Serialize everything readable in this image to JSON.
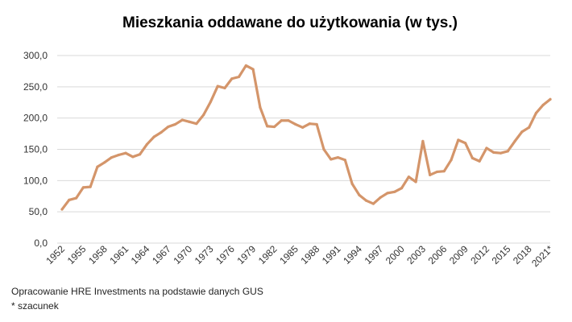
{
  "chart_data": {
    "type": "line",
    "title": "Mieszkania oddawane do użytkowania (w tys.)",
    "xlabel": "",
    "ylabel": "",
    "ylim": [
      0,
      300
    ],
    "yticks": [
      "0,0",
      "50,0",
      "100,0",
      "150,0",
      "200,0",
      "250,0",
      "300,0"
    ],
    "grid": true,
    "legend": "none",
    "series_color": "#d4956a",
    "x": [
      "1952",
      "1953",
      "1954",
      "1955",
      "1956",
      "1957",
      "1958",
      "1959",
      "1960",
      "1961",
      "1962",
      "1963",
      "1964",
      "1965",
      "1966",
      "1967",
      "1968",
      "1969",
      "1970",
      "1971",
      "1972",
      "1973",
      "1974",
      "1975",
      "1976",
      "1977",
      "1978",
      "1979",
      "1980",
      "1981",
      "1982",
      "1983",
      "1984",
      "1985",
      "1986",
      "1987",
      "1988",
      "1989",
      "1990",
      "1991",
      "1992",
      "1993",
      "1994",
      "1995",
      "1996",
      "1997",
      "1998",
      "1999",
      "2000",
      "2001",
      "2002",
      "2003",
      "2004",
      "2005",
      "2006",
      "2007",
      "2008",
      "2009",
      "2010",
      "2011",
      "2012",
      "2013",
      "2014",
      "2015",
      "2016",
      "2017",
      "2018",
      "2019",
      "2020",
      "2021*"
    ],
    "xtick_labels": [
      "1952",
      "1955",
      "1958",
      "1961",
      "1964",
      "1967",
      "1970",
      "1973",
      "1976",
      "1979",
      "1982",
      "1985",
      "1988",
      "1991",
      "1994",
      "1997",
      "2000",
      "2003",
      "2006",
      "2009",
      "2012",
      "2015",
      "2018",
      "2021*"
    ],
    "values": [
      54,
      69,
      72,
      89,
      90,
      122,
      129,
      137,
      141,
      144,
      138,
      142,
      158,
      170,
      177,
      186,
      190,
      197,
      194,
      191,
      205,
      226,
      251,
      248,
      263,
      266,
      284,
      278,
      217,
      187,
      186,
      196,
      196,
      190,
      185,
      191,
      190,
      150,
      134,
      137,
      133,
      95,
      77,
      68,
      63,
      73,
      80,
      82,
      88,
      106,
      98,
      163,
      109,
      114,
      115,
      133,
      165,
      160,
      136,
      131,
      152,
      145,
      144,
      147,
      163,
      178,
      185,
      208,
      221,
      230
    ]
  },
  "footnotes": {
    "source": "Opracowanie HRE Investments na podstawie danych GUS",
    "asterisk": "* szacunek"
  }
}
